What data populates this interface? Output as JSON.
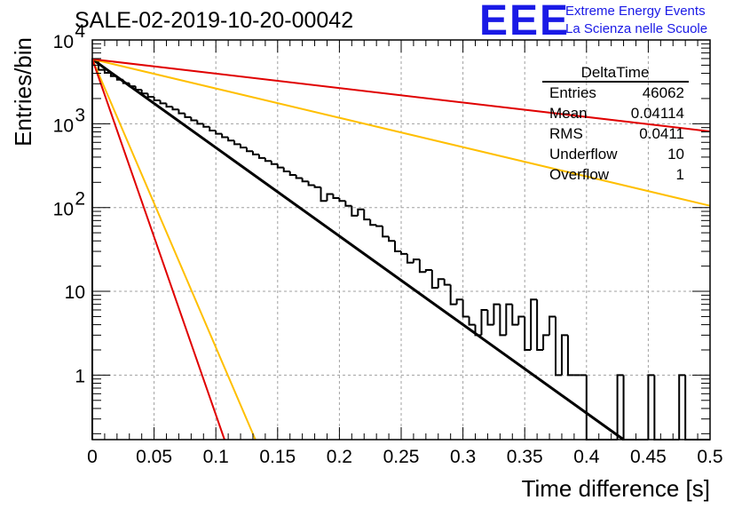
{
  "header": {
    "title": "SALE-02-2019-10-20-00042",
    "logo_text": "EEE",
    "logo_line1": "Extreme Energy Events",
    "logo_line2": "La Scienza nelle Scuole",
    "logo_color": "#1a1ae6"
  },
  "stats_box": {
    "title": "DeltaTime",
    "rows": [
      {
        "label": "Entries",
        "value": "46062"
      },
      {
        "label": "Mean",
        "value": "0.04114"
      },
      {
        "label": "RMS",
        "value": "0.0411"
      },
      {
        "label": "Underflow",
        "value": "10"
      },
      {
        "label": "Overflow",
        "value": "1"
      }
    ]
  },
  "chart_data": {
    "type": "line",
    "xlabel": "Time difference [s]",
    "ylabel": "Entries/bin",
    "xlim": [
      0,
      0.5
    ],
    "ylim": [
      0.17,
      10000
    ],
    "y_scale": "log",
    "grid": true,
    "x_ticks": [
      "0",
      "0.05",
      "0.1",
      "0.15",
      "0.2",
      "0.25",
      "0.3",
      "0.35",
      "0.4",
      "0.45",
      "0.5"
    ],
    "y_ticks": [
      {
        "base": "10",
        "exp": "4",
        "value": 10000
      },
      {
        "base": "10",
        "exp": "3",
        "value": 1000
      },
      {
        "base": "10",
        "exp": "2",
        "value": 100
      },
      {
        "base": "10",
        "label": "10",
        "value": 10
      },
      {
        "base": "1",
        "label": "1",
        "value": 1
      }
    ],
    "histogram": {
      "bin_width": 0.005,
      "color": "#000000",
      "values": [
        5900,
        4400,
        4050,
        3700,
        3350,
        3050,
        2800,
        2550,
        2300,
        2100,
        1900,
        1750,
        1600,
        1480,
        1330,
        1200,
        1100,
        1000,
        920,
        830,
        760,
        690,
        630,
        570,
        520,
        470,
        430,
        390,
        360,
        330,
        300,
        270,
        245,
        225,
        205,
        185,
        175,
        120,
        145,
        130,
        120,
        105,
        80,
        95,
        72,
        62,
        60,
        45,
        40,
        30,
        28,
        22,
        24,
        17,
        18,
        11,
        14,
        12,
        7,
        8,
        5,
        4,
        3,
        6,
        4,
        7,
        3,
        7,
        4,
        5,
        2,
        8,
        2,
        3,
        5,
        1,
        3,
        1,
        1,
        1,
        0,
        0,
        0,
        0,
        0,
        1,
        0,
        0,
        0,
        0,
        1,
        0,
        0,
        0,
        0,
        1,
        0,
        0,
        0,
        0
      ]
    },
    "series": [
      {
        "color": "#000000",
        "x": [
          0,
          0.43
        ],
        "y": [
          5900,
          0.17
        ]
      },
      {
        "color": "#ffbf00",
        "x": [
          0,
          0.5
        ],
        "y": [
          5900,
          105
        ]
      },
      {
        "color": "#e00000",
        "x": [
          0,
          0.5
        ],
        "y": [
          5900,
          810
        ]
      },
      {
        "color": "#ffbf00",
        "x": [
          0,
          0.132
        ],
        "y": [
          5900,
          0.17
        ]
      },
      {
        "color": "#e00000",
        "x": [
          0,
          0.107
        ],
        "y": [
          5900,
          0.17
        ]
      }
    ]
  }
}
